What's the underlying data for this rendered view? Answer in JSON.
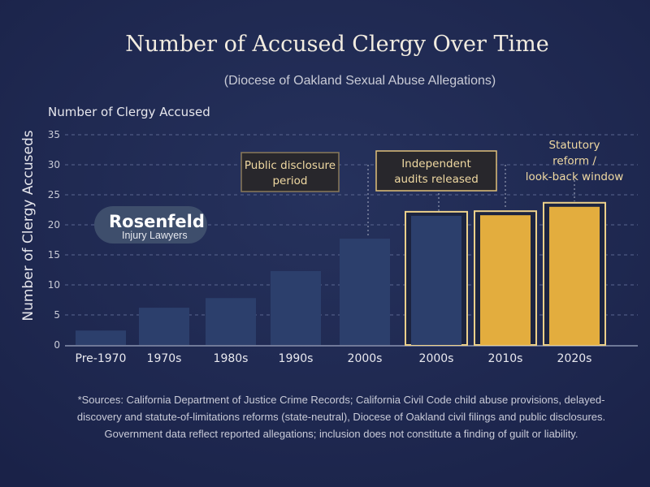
{
  "chart_data": {
    "type": "bar",
    "title": "Number of Accused Clergy Over Time",
    "subtitle": "(Diocese of Oakland Sexual Abuse Allegations)",
    "top_label": "Number of Clergy Accused",
    "ylabel": "Number of Clergy Accuseds",
    "xlabel": "",
    "ylim": [
      0,
      35
    ],
    "yticks": [
      0,
      5,
      10,
      15,
      20,
      25,
      30,
      35
    ],
    "grid": true,
    "categories": [
      "Pre-1970",
      "1970s",
      "1980s",
      "1990s",
      "2000s",
      "2000s",
      "2010s",
      "2020s"
    ],
    "values": [
      2.4,
      6.2,
      7.8,
      12.3,
      17.7,
      21.5,
      21.6,
      23
    ],
    "outlined": [
      false,
      false,
      false,
      false,
      false,
      true,
      true,
      true
    ],
    "highlighted": [
      false,
      false,
      false,
      false,
      false,
      false,
      true,
      true
    ],
    "colors": {
      "bar": "#2c3f6c",
      "highlight": "#e3ad3e",
      "outline": "#ecd08a",
      "background": "#1e2850"
    },
    "annotations": [
      {
        "lines": [
          "Public disclosure",
          "period"
        ],
        "boxed": true,
        "category_index": 4
      },
      {
        "lines": [
          "Independent",
          "audits released"
        ],
        "boxed": true,
        "category_index": 5
      },
      {
        "lines": [
          "Statutory",
          "reform /",
          "look-back window"
        ],
        "boxed": false,
        "category_index": 7
      }
    ],
    "footnote": [
      "*Sources: California Department of Justice Crime Records; California Civil Code child abuse provisions, delayed-",
      "discovery and statute-of-limitations reforms (state-neutral), Diocese of Oakland civil filings and public disclosures.",
      "Government data reflect reported allegations; inclusion does not constitute a finding of guilt or liability."
    ]
  },
  "logo": {
    "name": "Rosenfeld",
    "tagline": "Injury Lawyers"
  }
}
